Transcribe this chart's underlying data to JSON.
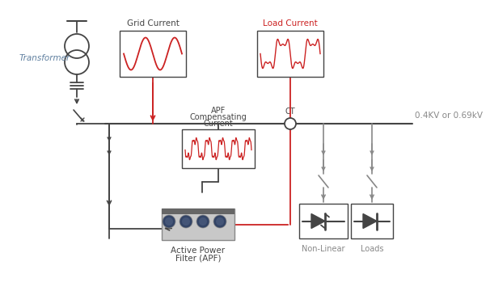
{
  "bg_color": "#ffffff",
  "line_color": "#888888",
  "dark_color": "#444444",
  "red_color": "#cc2222",
  "blue_label_color": "#6080a0",
  "gray_label_color": "#888888",
  "grid_current_label": "Grid Current",
  "load_current_label": "Load Current",
  "apf_comp_label": [
    "APF",
    "Compensating",
    "Current"
  ],
  "ct_label": "CT",
  "voltage_label": "0.4KV or 0.69kV",
  "transformer_label": "Transformer",
  "apf_label_1": "Active Power",
  "apf_label_2": "Filter (APF)",
  "nonlinear_label": "Non-Linear",
  "loads_label": "Loads"
}
